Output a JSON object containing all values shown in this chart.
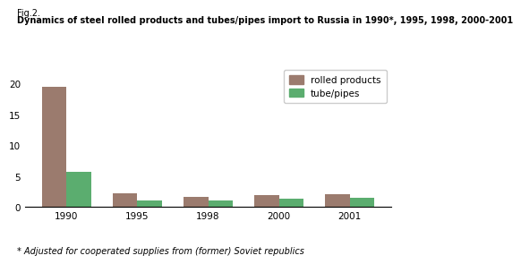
{
  "fig_label": "Fig.2.",
  "title": "Dynamics of steel rolled products and tubes/pipes import to Russia in 1990*, 1995, 1998, 2000-2001",
  "footnote": "* Adjusted for cooperated supplies from (former) Soviet republics",
  "categories": [
    "1990",
    "1995",
    "1998",
    "2000",
    "2001"
  ],
  "rolled_products": [
    19.5,
    2.2,
    1.6,
    1.9,
    2.0
  ],
  "tube_pipes": [
    5.7,
    1.1,
    1.0,
    1.3,
    1.5
  ],
  "rolled_color": "#9B7B6E",
  "tube_color": "#5BAD6F",
  "bar_width": 0.35,
  "ylim": [
    0,
    23
  ],
  "yticks": [
    0,
    5,
    10,
    15,
    20
  ],
  "legend_labels": [
    "rolled products",
    "tube/pipes"
  ],
  "background_color": "#ffffff",
  "title_fontsize": 7.0,
  "figlabel_fontsize": 7.0,
  "footnote_fontsize": 7.0,
  "tick_fontsize": 7.5,
  "legend_fontsize": 7.5
}
